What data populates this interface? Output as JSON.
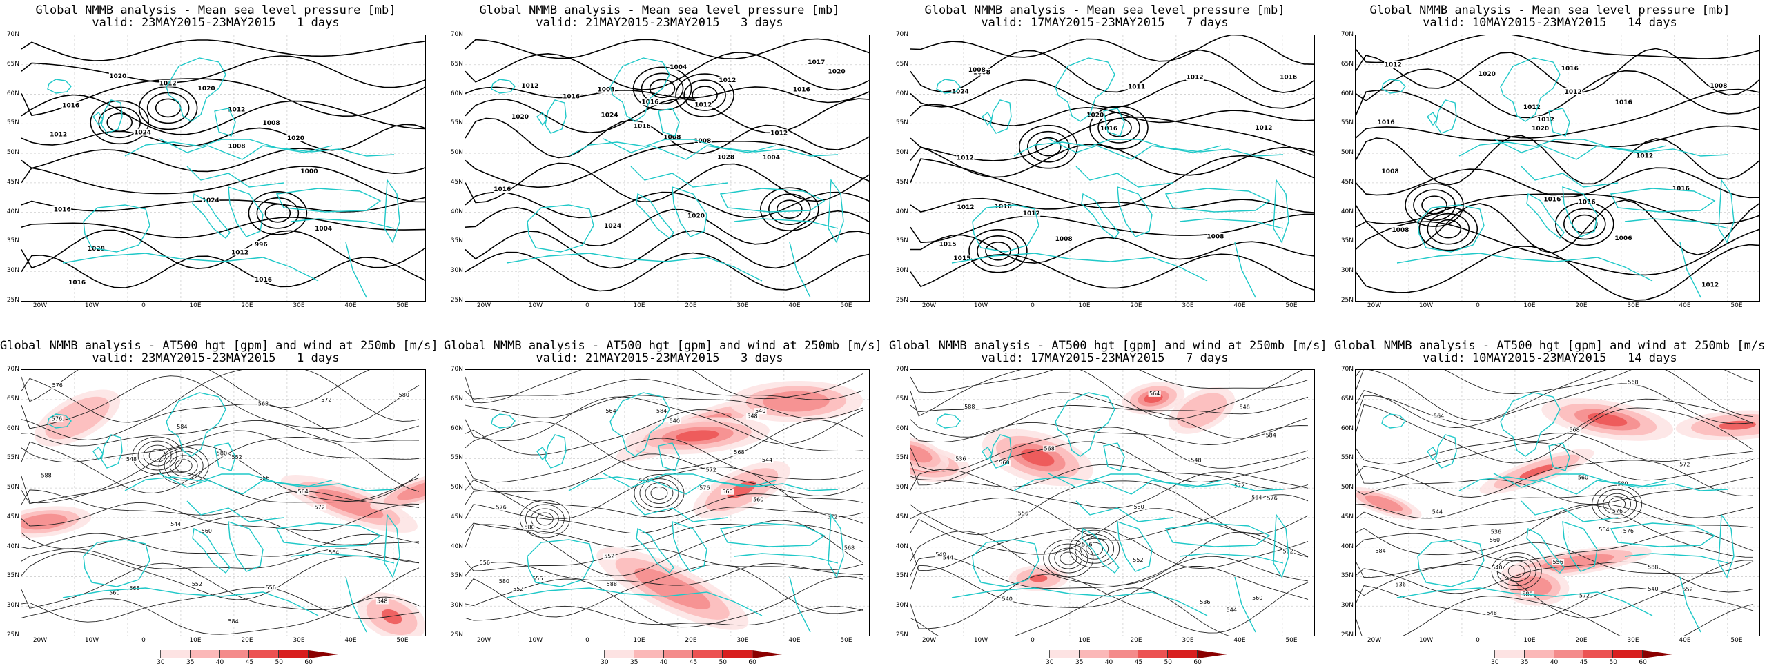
{
  "map": {
    "lat_labels": [
      "70N",
      "65N",
      "60N",
      "55N",
      "50N",
      "45N",
      "40N",
      "35N",
      "30N",
      "25N"
    ],
    "lon_labels": [
      "20W",
      "10W",
      "0",
      "10E",
      "20E",
      "30E",
      "40E",
      "50E"
    ],
    "coast_color": "#1fc8c8",
    "contour_color": "#000000",
    "wind_colors": [
      "#ffffff",
      "#fde3e3",
      "#fbb8b8",
      "#f48b8b",
      "#ec5252",
      "#d81f1f",
      "#8b0000"
    ]
  },
  "colorbar": {
    "labels": [
      "30",
      "35",
      "40",
      "45",
      "50",
      "60"
    ]
  },
  "panels": [
    {
      "id": "mslp-1",
      "kind": "mslp",
      "title_line1": "Global NMMB analysis - Mean sea level pressure [mb]",
      "title_line2": "valid: 23MAY2015-23MAY2015   1 days",
      "contour_labels": [
        "1016",
        "1020",
        "1024",
        "1028",
        "1012",
        "1008",
        "1004",
        "1000",
        "996",
        "1016",
        "1020",
        "1012",
        "1016",
        "1024",
        "1020",
        "1012",
        "1008",
        "1016",
        "1012"
      ]
    },
    {
      "id": "mslp-3",
      "kind": "mslp",
      "title_line1": "Global NMMB analysis - Mean sea level pressure [mb]",
      "title_line2": "valid: 21MAY2015-23MAY2015   3 days",
      "contour_labels": [
        "1008",
        "1004",
        "1004",
        "1012",
        "1016",
        "1008",
        "1016",
        "1020",
        "1024",
        "1020",
        "1016",
        "1012",
        "1017",
        "1016",
        "1012",
        "1008",
        "1012",
        "1016",
        "1020",
        "1024",
        "1028"
      ]
    },
    {
      "id": "mslp-7",
      "kind": "mslp",
      "title_line1": "Global NMMB analysis - Mean sea level pressure [mb]",
      "title_line2": "valid: 17MAY2015-23MAY2015   7 days",
      "contour_labels": [
        "1008",
        "1008",
        "1008",
        "1012",
        "1015",
        "1016",
        "1015",
        "1016",
        "1012",
        "1024",
        "1020",
        "1016",
        "1012",
        "1012",
        "1012",
        "1008",
        "1011"
      ]
    },
    {
      "id": "mslp-14",
      "kind": "mslp",
      "title_line1": "Global NMMB analysis - Mean sea level pressure [mb]",
      "title_line2": "valid: 10MAY2015-23MAY2015   14 days",
      "contour_labels": [
        "1006",
        "1008",
        "1008",
        "1008",
        "1012",
        "1012",
        "1012",
        "1012",
        "1016",
        "1016",
        "1020",
        "1020",
        "1012",
        "1016",
        "1016",
        "1012",
        "1016",
        "1016"
      ]
    },
    {
      "id": "z500-1",
      "kind": "z500",
      "title_line1": "Global NMMB analysis - AT500 hgt [gpm] and wind at 250mb [m/s]",
      "title_line2": "valid: 23MAY2015-23MAY2015   1 days",
      "contour_labels": [
        "548",
        "552",
        "556",
        "560",
        "564",
        "568",
        "572",
        "576",
        "580",
        "584",
        "544",
        "548",
        "552",
        "556",
        "560",
        "564",
        "568",
        "572",
        "576",
        "580",
        "584",
        "588"
      ]
    },
    {
      "id": "z500-3",
      "kind": "z500",
      "title_line1": "Global NMMB analysis - AT500 hgt [gpm] and wind at 250mb [m/s]",
      "title_line2": "valid: 21MAY2015-23MAY2015   3 days",
      "contour_labels": [
        "540",
        "544",
        "548",
        "552",
        "556",
        "560",
        "564",
        "568",
        "572",
        "576",
        "580",
        "584",
        "588",
        "540",
        "552",
        "556",
        "560",
        "564",
        "568",
        "572",
        "576",
        "580"
      ]
    },
    {
      "id": "z500-7",
      "kind": "z500",
      "title_line1": "Global NMMB analysis - AT500 hgt [gpm] and wind at 250mb [m/s]",
      "title_line2": "valid: 17MAY2015-23MAY2015   7 days",
      "contour_labels": [
        "536",
        "540",
        "544",
        "548",
        "552",
        "556",
        "560",
        "564",
        "568",
        "572",
        "576",
        "580",
        "584",
        "588",
        "536",
        "540",
        "544",
        "548",
        "556",
        "560",
        "564",
        "572"
      ]
    },
    {
      "id": "z500-14",
      "kind": "z500",
      "title_line1": "Global NMMB analysis - AT500 hgt [gpm] and wind at 250mb [m/s]",
      "title_line2": "valid: 10MAY2015-23MAY2015   14 days",
      "contour_labels": [
        "536",
        "540",
        "544",
        "548",
        "552",
        "556",
        "560",
        "564",
        "568",
        "572",
        "576",
        "580",
        "584",
        "588",
        "536",
        "540",
        "560",
        "564",
        "568",
        "572",
        "576",
        "580"
      ]
    }
  ]
}
